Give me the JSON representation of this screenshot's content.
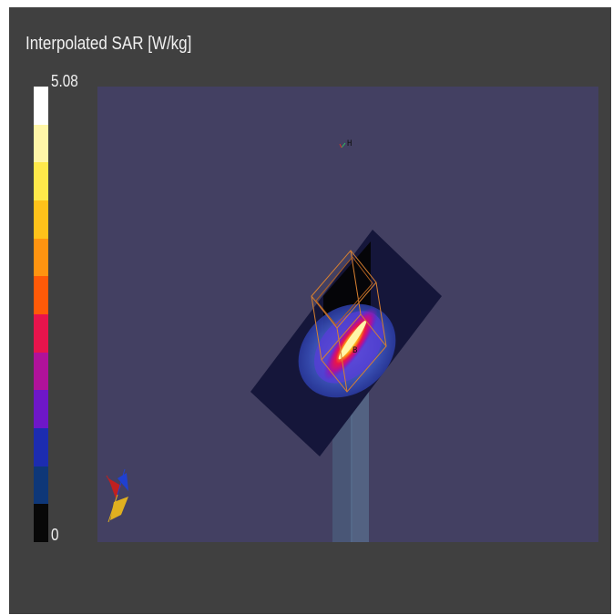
{
  "colorbar": {
    "title": "Interpolated SAR [W/kg]",
    "max_label": "5.08",
    "min_label": "0",
    "colors_top_to_bottom": [
      "#ffffff",
      "#fff6a8",
      "#ffe94a",
      "#ffc21a",
      "#ff9410",
      "#ff5a08",
      "#e8144c",
      "#b0129a",
      "#6e17c8",
      "#1c2cb0",
      "#0e3778",
      "#080808"
    ]
  },
  "viewport": {
    "background": "#434062",
    "markers": {
      "top_marker": "H",
      "center_marker": "B"
    },
    "icons": [
      "orientation-axes-icon"
    ]
  }
}
